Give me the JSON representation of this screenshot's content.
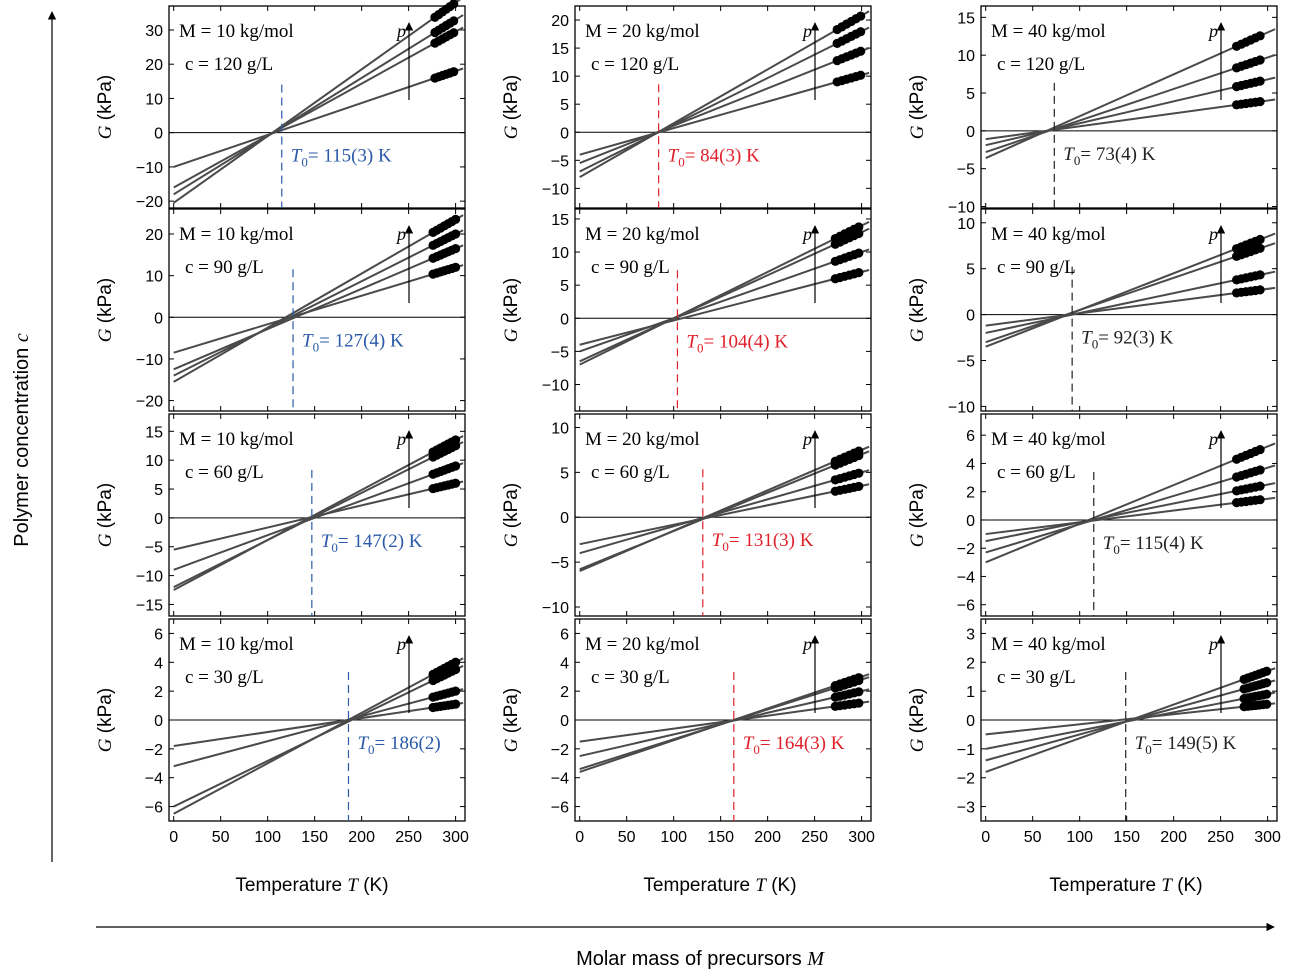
{
  "figure": {
    "y_axis_label_prefix": "Polymer concentration ",
    "y_axis_label_symbol": "c",
    "x_axis_label_prefix": "Molar mass of precursors ",
    "x_axis_label_symbol": "M",
    "panel_xlabel_prefix": "Temperature ",
    "panel_xlabel_symbol": "T",
    "panel_xlabel_unit": " (K)",
    "panel_ylabel_symbol": "G",
    "panel_ylabel_unit": " (kPa)",
    "arrow_label": "p",
    "t0_symbol": "T",
    "t0_subscript": "0"
  },
  "colors": {
    "M10": "#2a5aa8",
    "M20": "#e0202a",
    "M40": "#222222",
    "fit_line": "#4a4a4a",
    "data_point": "#000000"
  },
  "chart_data": [
    {
      "type": "line",
      "M_label": "M = 10 kg/mol",
      "c_label": "c = 120 g/L",
      "t0_label": "= 115(3) K",
      "t0": 115,
      "t0_color": "M10",
      "xlim": [
        -5,
        310
      ],
      "ylim": [
        -22,
        37
      ],
      "yticks": [
        -20,
        -10,
        0,
        10,
        20,
        30
      ],
      "xticks": [
        0,
        50,
        100,
        150,
        200,
        250,
        300
      ],
      "series": [
        {
          "values_at_0": -20.5,
          "values_at_300": 38
        },
        {
          "values_at_0": -18,
          "values_at_300": 33
        },
        {
          "values_at_0": -16,
          "values_at_300": 29.5
        },
        {
          "values_at_0": -10,
          "values_at_300": 18
        }
      ],
      "point_x": [
        278,
        282,
        286,
        290,
        294,
        298
      ]
    },
    {
      "type": "line",
      "M_label": "M = 20 kg/mol",
      "c_label": "c = 120 g/L",
      "t0_label": "= 84(3) K",
      "t0": 84,
      "t0_color": "M20",
      "xlim": [
        -5,
        310
      ],
      "ylim": [
        -13.5,
        22.5
      ],
      "yticks": [
        -10,
        -5,
        0,
        5,
        10,
        15,
        20
      ],
      "xticks": [
        0,
        50,
        100,
        150,
        200,
        250,
        300
      ],
      "series": [
        {
          "values_at_0": -8,
          "values_at_300": 20.8
        },
        {
          "values_at_0": -7,
          "values_at_300": 18
        },
        {
          "values_at_0": -5.5,
          "values_at_300": 14.5
        },
        {
          "values_at_0": -4,
          "values_at_300": 10.2
        }
      ],
      "point_x": [
        274,
        279,
        284,
        289,
        294,
        299
      ]
    },
    {
      "type": "line",
      "M_label": "M = 40 kg/mol",
      "c_label": "c = 120 g/L",
      "t0_label": "= 73(4) K",
      "t0": 73,
      "t0_color": "M40",
      "xlim": [
        -5,
        310
      ],
      "ylim": [
        -10.2,
        16.5
      ],
      "yticks": [
        -10,
        -5,
        0,
        5,
        10,
        15
      ],
      "xticks": [
        0,
        50,
        100,
        150,
        200,
        250,
        300
      ],
      "series": [
        {
          "values_at_0": -3.6,
          "values_at_300": 13
        },
        {
          "values_at_0": -2.8,
          "values_at_300": 9.7
        },
        {
          "values_at_0": -1.9,
          "values_at_300": 6.8
        },
        {
          "values_at_0": -1.1,
          "values_at_300": 4
        }
      ],
      "point_x": [
        267,
        272,
        277,
        282,
        287,
        292
      ]
    },
    {
      "type": "line",
      "M_label": "M = 10 kg/mol",
      "c_label": "c = 90 g/L",
      "t0_label": "= 127(4) K",
      "t0": 127,
      "t0_color": "M10",
      "xlim": [
        -5,
        310
      ],
      "ylim": [
        -22.5,
        26
      ],
      "yticks": [
        -20,
        -10,
        0,
        10,
        20
      ],
      "xticks": [
        0,
        50,
        100,
        150,
        200,
        250,
        300
      ],
      "series": [
        {
          "values_at_0": -15.5,
          "values_at_300": 23.5
        },
        {
          "values_at_0": -14,
          "values_at_300": 20
        },
        {
          "values_at_0": -12.5,
          "values_at_300": 16.5
        },
        {
          "values_at_0": -8.5,
          "values_at_300": 12
        }
      ],
      "point_x": [
        276,
        280,
        284,
        288,
        292,
        296,
        300
      ]
    },
    {
      "type": "line",
      "M_label": "M = 20 kg/mol",
      "c_label": "c = 90 g/L",
      "t0_label": "= 104(4) K",
      "t0": 104,
      "t0_color": "M20",
      "xlim": [
        -5,
        310
      ],
      "ylim": [
        -14,
        16.5
      ],
      "yticks": [
        -10,
        -5,
        0,
        5,
        10,
        15
      ],
      "xticks": [
        0,
        50,
        100,
        150,
        200,
        250,
        300
      ],
      "series": [
        {
          "values_at_0": -7,
          "values_at_300": 14
        },
        {
          "values_at_0": -6.5,
          "values_at_300": 13
        },
        {
          "values_at_0": -5,
          "values_at_300": 10
        },
        {
          "values_at_0": -4,
          "values_at_300": 7
        }
      ],
      "point_x": [
        272,
        277,
        282,
        287,
        292,
        297
      ]
    },
    {
      "type": "line",
      "M_label": "M = 40 kg/mol",
      "c_label": "c = 90 g/L",
      "t0_label": "= 92(3) K",
      "t0": 92,
      "t0_color": "M40",
      "xlim": [
        -5,
        310
      ],
      "ylim": [
        -10.5,
        11.5
      ],
      "yticks": [
        -10,
        -5,
        0,
        5,
        10
      ],
      "xticks": [
        0,
        50,
        100,
        150,
        200,
        250,
        300
      ],
      "series": [
        {
          "values_at_0": -3.5,
          "values_at_300": 8.5
        },
        {
          "values_at_0": -3,
          "values_at_300": 7.5
        },
        {
          "values_at_0": -2,
          "values_at_300": 4.5
        },
        {
          "values_at_0": -1.2,
          "values_at_300": 2.8
        }
      ],
      "point_x": [
        267,
        272,
        277,
        282,
        287,
        292
      ]
    },
    {
      "type": "line",
      "M_label": "M = 10 kg/mol",
      "c_label": "c = 60 g/L",
      "t0_label": "= 147(2) K",
      "t0": 147,
      "t0_color": "M10",
      "xlim": [
        -5,
        310
      ],
      "ylim": [
        -17,
        18
      ],
      "yticks": [
        -15,
        -10,
        -5,
        0,
        5,
        10,
        15
      ],
      "xticks": [
        0,
        50,
        100,
        150,
        200,
        250,
        300
      ],
      "series": [
        {
          "values_at_0": -12.5,
          "values_at_300": 13.5
        },
        {
          "values_at_0": -12,
          "values_at_300": 12.5
        },
        {
          "values_at_0": -9,
          "values_at_300": 9
        },
        {
          "values_at_0": -5.5,
          "values_at_300": 6
        }
      ],
      "point_x": [
        276,
        280,
        284,
        288,
        292,
        296,
        300
      ]
    },
    {
      "type": "line",
      "M_label": "M = 20 kg/mol",
      "c_label": "c = 60 g/L",
      "t0_label": "= 131(3) K",
      "t0": 131,
      "t0_color": "M20",
      "xlim": [
        -5,
        310
      ],
      "ylim": [
        -11,
        11.5
      ],
      "yticks": [
        -10,
        -5,
        0,
        5,
        10
      ],
      "xticks": [
        0,
        50,
        100,
        150,
        200,
        250,
        300
      ],
      "series": [
        {
          "values_at_0": -6,
          "values_at_300": 7.5
        },
        {
          "values_at_0": -5.8,
          "values_at_300": 7
        },
        {
          "values_at_0": -4,
          "values_at_300": 5
        },
        {
          "values_at_0": -3,
          "values_at_300": 3.5
        }
      ],
      "point_x": [
        272,
        277,
        282,
        287,
        292,
        297
      ]
    },
    {
      "type": "line",
      "M_label": "M = 40 kg/mol",
      "c_label": "c = 60 g/L",
      "t0_label": "= 115(4) K",
      "t0": 115,
      "t0_color": "M40",
      "xlim": [
        -5,
        310
      ],
      "ylim": [
        -6.8,
        7.5
      ],
      "yticks": [
        -6,
        -4,
        -2,
        0,
        2,
        4,
        6
      ],
      "xticks": [
        0,
        50,
        100,
        150,
        200,
        250,
        300
      ],
      "series": [
        {
          "values_at_0": -3,
          "values_at_300": 5.2
        },
        {
          "values_at_0": -2.3,
          "values_at_300": 3.7
        },
        {
          "values_at_0": -1.5,
          "values_at_300": 2.5
        },
        {
          "values_at_0": -1,
          "values_at_300": 1.5
        }
      ],
      "point_x": [
        267,
        272,
        277,
        282,
        287,
        292
      ]
    },
    {
      "type": "line",
      "M_label": "M = 10 kg/mol",
      "c_label": "c = 30 g/L",
      "t0_label": "= 186(2)",
      "t0": 186,
      "t0_color": "M10",
      "xlim": [
        -5,
        310
      ],
      "ylim": [
        -7,
        7
      ],
      "yticks": [
        -6,
        -4,
        -2,
        0,
        2,
        4,
        6
      ],
      "xticks": [
        0,
        50,
        100,
        150,
        200,
        250,
        300
      ],
      "series": [
        {
          "values_at_0": -6.5,
          "values_at_300": 4
        },
        {
          "values_at_0": -6,
          "values_at_300": 3.5
        },
        {
          "values_at_0": -3.2,
          "values_at_300": 2
        },
        {
          "values_at_0": -1.8,
          "values_at_300": 1.1
        }
      ],
      "point_x": [
        276,
        280,
        284,
        288,
        292,
        296,
        300
      ]
    },
    {
      "type": "line",
      "M_label": "M = 20 kg/mol",
      "c_label": "c = 30 g/L",
      "t0_label": "= 164(3) K",
      "t0": 164,
      "t0_color": "M20",
      "xlim": [
        -5,
        310
      ],
      "ylim": [
        -7,
        7
      ],
      "yticks": [
        -6,
        -4,
        -2,
        0,
        2,
        4,
        6
      ],
      "xticks": [
        0,
        50,
        100,
        150,
        200,
        250,
        300
      ],
      "series": [
        {
          "values_at_0": -3.6,
          "values_at_300": 3
        },
        {
          "values_at_0": -3.4,
          "values_at_300": 2.8
        },
        {
          "values_at_0": -2.5,
          "values_at_300": 2
        },
        {
          "values_at_0": -1.5,
          "values_at_300": 1.2
        }
      ],
      "point_x": [
        272,
        277,
        282,
        287,
        292,
        297
      ]
    },
    {
      "type": "line",
      "M_label": "M = 40 kg/mol",
      "c_label": "c = 30 g/L",
      "t0_label": "= 149(5) K",
      "t0": 149,
      "t0_color": "M40",
      "xlim": [
        -5,
        310
      ],
      "ylim": [
        -3.5,
        3.5
      ],
      "yticks": [
        -3,
        -2,
        -1,
        0,
        1,
        2,
        3
      ],
      "xticks": [
        0,
        50,
        100,
        150,
        200,
        250,
        300
      ],
      "series": [
        {
          "values_at_0": -1.8,
          "values_at_300": 1.7
        },
        {
          "values_at_0": -1.4,
          "values_at_300": 1.3
        },
        {
          "values_at_0": -1,
          "values_at_300": 0.9
        },
        {
          "values_at_0": -0.5,
          "values_at_300": 0.55
        }
      ],
      "point_x": [
        275,
        279,
        283,
        287,
        291,
        295,
        299
      ]
    }
  ]
}
